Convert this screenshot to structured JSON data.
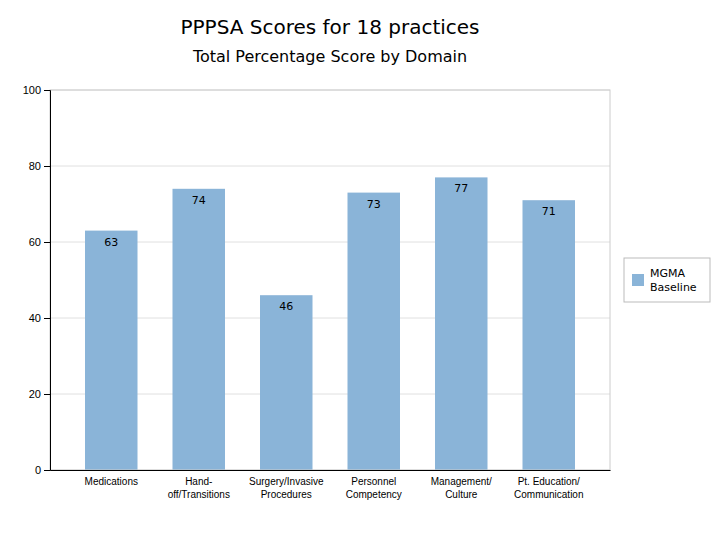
{
  "chart_data": {
    "type": "bar",
    "title": "PPPSA Scores for 18 practices",
    "subtitle": "Total Percentage Score by Domain",
    "categories": [
      "Medications",
      "Hand-\noff/Transitions",
      "Surgery/Invasive\nProcedures",
      "Personnel\nCompetency",
      "Management/\nCulture",
      "Pt. Education/\nCommunication"
    ],
    "series": [
      {
        "name": "MGMA\nBaseline",
        "color": "#8ab4d8",
        "values": [
          63,
          74,
          46,
          73,
          77,
          71
        ]
      }
    ],
    "ylim": [
      0,
      100
    ],
    "yticks": [
      0,
      20,
      40,
      60,
      80,
      100
    ],
    "grid": true,
    "legend": "right",
    "data_labels": true
  }
}
